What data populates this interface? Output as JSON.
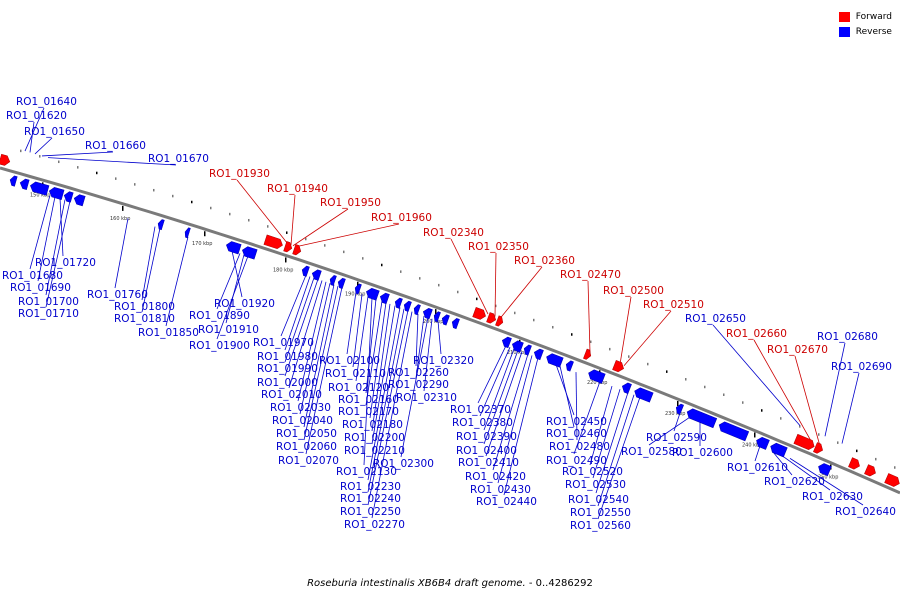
{
  "legend": {
    "forward": {
      "label": "Forward",
      "color": "#ff0000"
    },
    "reverse": {
      "label": "Reverse",
      "color": "#0000ff"
    }
  },
  "caption": {
    "species": "Roseburia intestinalis XB6B4 draft genome.",
    "range": " - 0..4286292"
  },
  "axis": {
    "tick_labels": [
      "150 kbp",
      "160 kbp",
      "170 kbp",
      "180 kbp",
      "190 kbp",
      "200 kbp",
      "210 kbp",
      "220 kbp",
      "230 kbp",
      "240 kbp",
      "250 kbp"
    ]
  },
  "genes": {
    "forward": [
      "RO1_01930",
      "RO1_01940",
      "RO1_01950",
      "RO1_01960",
      "RO1_02340",
      "RO1_02350",
      "RO1_02360",
      "RO1_02470",
      "RO1_02500",
      "RO1_02510",
      "RO1_02660",
      "RO1_02670"
    ],
    "reverse_above": [
      "RO1_01640",
      "RO1_01620",
      "RO1_01650",
      "RO1_01660",
      "RO1_01670",
      "RO1_02650",
      "RO1_02680",
      "RO1_02690"
    ],
    "reverse_below": [
      "RO1_01720",
      "RO1_01680",
      "RO1_01690",
      "RO1_01700",
      "RO1_01710",
      "RO1_01760",
      "RO1_01800",
      "RO1_01810",
      "RO1_01850",
      "RO1_01920",
      "RO1_01890",
      "RO1_01910",
      "RO1_01900",
      "RO1_01970",
      "RO1_01980",
      "RO1_01990",
      "RO1_02000",
      "RO1_02010",
      "RO1_02030",
      "RO1_02040",
      "RO1_02050",
      "RO1_02060",
      "RO1_02070",
      "RO1_02100",
      "RO1_02110",
      "RO1_02120",
      "RO1_02130",
      "RO1_02160",
      "RO1_02170",
      "RO1_02180",
      "RO1_02200",
      "RO1_02210",
      "RO1_02230",
      "RO1_02240",
      "RO1_02250",
      "RO1_02270",
      "RO1_02260",
      "RO1_02290",
      "RO1_02300",
      "RO1_02310",
      "RO1_02320",
      "RO1_02370",
      "RO1_02380",
      "RO1_02390",
      "RO1_02400",
      "RO1_02410",
      "RO1_02420",
      "RO1_02430",
      "RO1_02440",
      "RO1_02450",
      "RO1_02460",
      "RO1_02480",
      "RO1_02490",
      "RO1_02520",
      "RO1_02530",
      "RO1_02540",
      "RO1_02550",
      "RO1_02560",
      "RO1_02590",
      "RO1_02580",
      "RO1_02600",
      "RO1_02610",
      "RO1_02620",
      "RO1_02630",
      "RO1_02640"
    ]
  }
}
